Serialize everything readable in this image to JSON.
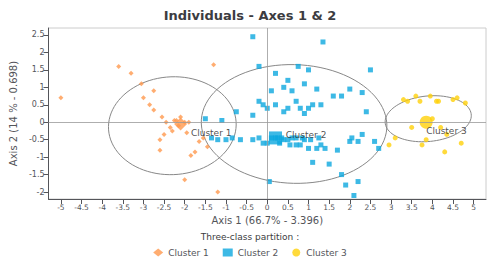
{
  "chart_data": {
    "type": "scatter",
    "title": "Individuals - Axes 1 & 2",
    "xlabel": "Axis 1 (66.7% - 3.396)",
    "ylabel": "Axis 2 (14 % - 0.698)",
    "xlim": [
      -5.3,
      5.3
    ],
    "ylim": [
      -2.2,
      2.7
    ],
    "xticks": [
      -5,
      -4.5,
      -4,
      -3.5,
      -3,
      -2.5,
      -2,
      -1.5,
      -1,
      -0.5,
      0,
      0.5,
      1,
      1.5,
      2,
      2.5,
      3,
      3.5,
      4,
      4.5,
      5
    ],
    "yticks": [
      -2,
      -1.5,
      -1,
      -0.5,
      0,
      0.5,
      1,
      1.5,
      2,
      2.5
    ],
    "grid": false,
    "legend": "bottom",
    "legend_title": "Three-class partition :",
    "reference_lines": {
      "x": 0,
      "y": 0,
      "color": "#999999"
    },
    "series": [
      {
        "name": "Cluster 1",
        "marker": "diamond",
        "values": [
          [
            -5.0,
            0.7
          ],
          [
            -3.6,
            1.6
          ],
          [
            -3.3,
            1.4
          ],
          [
            -3.05,
            1.1
          ],
          [
            -3.0,
            0.7
          ],
          [
            -2.85,
            0.5
          ],
          [
            -2.75,
            0.9
          ],
          [
            -2.75,
            0.35
          ],
          [
            -2.6,
            -0.5
          ],
          [
            -2.6,
            -0.8
          ],
          [
            -2.55,
            0.15
          ],
          [
            -2.5,
            -0.35
          ],
          [
            -2.45,
            0.0
          ],
          [
            -2.35,
            -0.15
          ],
          [
            -2.3,
            -0.25
          ],
          [
            -2.25,
            0.05
          ],
          [
            -2.2,
            0.05
          ],
          [
            -2.15,
            -0.1
          ],
          [
            -2.1,
            0.15
          ],
          [
            -2.0,
            0.0
          ],
          [
            -1.95,
            -0.3
          ],
          [
            -1.9,
            0.0
          ],
          [
            -1.85,
            -0.95
          ],
          [
            -1.75,
            -0.85
          ],
          [
            -1.65,
            -0.55
          ],
          [
            -1.55,
            -0.45
          ],
          [
            -1.45,
            -0.7
          ],
          [
            -1.3,
            1.65
          ],
          [
            -2.0,
            -1.65
          ],
          [
            -1.2,
            -2.0
          ]
        ],
        "center": [
          -2.1,
          -0.05
        ],
        "ellipse": {
          "cx": -2.3,
          "cy": -0.1,
          "rx": 1.55,
          "ry": 1.4,
          "angle": 8,
          "color": "#888888"
        }
      },
      {
        "name": "Cluster 2",
        "marker": "square",
        "values": [
          [
            -1.5,
            0.1
          ],
          [
            -1.35,
            -0.45
          ],
          [
            -1.2,
            -0.5
          ],
          [
            -1.1,
            0.05
          ],
          [
            -1.0,
            -0.5
          ],
          [
            -0.85,
            -0.45
          ],
          [
            -0.75,
            0.3
          ],
          [
            -0.65,
            -0.5
          ],
          [
            -0.35,
            2.45
          ],
          [
            -0.2,
            1.6
          ],
          [
            -0.35,
            0.2
          ],
          [
            -0.35,
            -0.5
          ],
          [
            -0.2,
            0.6
          ],
          [
            -0.2,
            -0.45
          ],
          [
            -0.1,
            0.5
          ],
          [
            -0.1,
            -0.6
          ],
          [
            0.0,
            0.4
          ],
          [
            0.0,
            -0.6
          ],
          [
            0.05,
            -1.7
          ],
          [
            0.1,
            0.9
          ],
          [
            0.1,
            -0.45
          ],
          [
            0.2,
            1.4
          ],
          [
            0.2,
            0.5
          ],
          [
            0.2,
            -0.45
          ],
          [
            0.25,
            -0.45
          ],
          [
            0.3,
            -0.6
          ],
          [
            0.35,
            -0.45
          ],
          [
            0.4,
            1.0
          ],
          [
            0.4,
            0.3
          ],
          [
            0.4,
            -0.5
          ],
          [
            0.5,
            1.2
          ],
          [
            0.5,
            0.4
          ],
          [
            0.5,
            -0.5
          ],
          [
            0.55,
            -0.65
          ],
          [
            0.6,
            0.9
          ],
          [
            0.6,
            -0.45
          ],
          [
            0.7,
            0.6
          ],
          [
            0.7,
            -0.45
          ],
          [
            0.7,
            -0.65
          ],
          [
            0.75,
            1.6
          ],
          [
            0.8,
            0.4
          ],
          [
            0.8,
            -0.65
          ],
          [
            0.85,
            -0.45
          ],
          [
            0.9,
            1.1
          ],
          [
            0.9,
            0.25
          ],
          [
            0.9,
            -0.5
          ],
          [
            1.0,
            1.5
          ],
          [
            1.0,
            0.4
          ],
          [
            1.0,
            -0.75
          ],
          [
            1.05,
            -0.5
          ],
          [
            1.1,
            0.5
          ],
          [
            1.1,
            -1.15
          ],
          [
            1.2,
            0.95
          ],
          [
            1.2,
            -0.75
          ],
          [
            1.25,
            -0.45
          ],
          [
            1.3,
            0.5
          ],
          [
            1.3,
            -0.65
          ],
          [
            1.35,
            2.3
          ],
          [
            1.4,
            -0.75
          ],
          [
            1.5,
            -1.2
          ],
          [
            1.6,
            0.75
          ],
          [
            1.7,
            -0.8
          ],
          [
            1.8,
            0.75
          ],
          [
            1.8,
            -1.5
          ],
          [
            1.9,
            -1.8
          ],
          [
            2.0,
            -0.55
          ],
          [
            2.0,
            0.95
          ],
          [
            2.05,
            -0.45
          ],
          [
            2.1,
            -2.1
          ],
          [
            2.2,
            -0.55
          ],
          [
            2.2,
            -1.7
          ],
          [
            2.3,
            0.85
          ],
          [
            2.3,
            -0.35
          ],
          [
            2.4,
            0.3
          ],
          [
            2.5,
            1.5
          ],
          [
            2.6,
            -0.55
          ],
          [
            2.7,
            -0.75
          ]
        ],
        "center": [
          0.2,
          -0.45
        ],
        "ellipse": {
          "cx": 0.65,
          "cy": -0.05,
          "rx": 2.25,
          "ry": 1.7,
          "angle": -3,
          "color": "#888888"
        }
      },
      {
        "name": "Cluster 3",
        "marker": "circle",
        "values": [
          [
            2.95,
            -0.65
          ],
          [
            3.1,
            -0.45
          ],
          [
            3.3,
            0.65
          ],
          [
            3.4,
            0.6
          ],
          [
            3.5,
            -0.15
          ],
          [
            3.6,
            0.75
          ],
          [
            3.7,
            0.6
          ],
          [
            3.75,
            -0.65
          ],
          [
            3.85,
            -0.5
          ],
          [
            3.95,
            0.75
          ],
          [
            4.0,
            0.1
          ],
          [
            4.1,
            0.6
          ],
          [
            4.15,
            0.6
          ],
          [
            4.2,
            -0.15
          ],
          [
            4.3,
            -0.85
          ],
          [
            4.35,
            -0.35
          ],
          [
            4.5,
            0.65
          ],
          [
            4.6,
            0.7
          ],
          [
            4.7,
            -0.6
          ],
          [
            4.8,
            0.55
          ]
        ],
        "center": [
          3.85,
          0.0
        ],
        "ellipse": {
          "cx": 3.9,
          "cy": 0.1,
          "rx": 1.05,
          "ry": 0.65,
          "angle": 8,
          "color": "#888888"
        }
      }
    ],
    "annotations": [
      {
        "text": "Cluster 1",
        "x": -1.85,
        "y": -0.18
      },
      {
        "text": "Cluster 2",
        "x": 0.45,
        "y": -0.25
      },
      {
        "text": "Cluster 3",
        "x": 3.85,
        "y": -0.12
      }
    ]
  }
}
